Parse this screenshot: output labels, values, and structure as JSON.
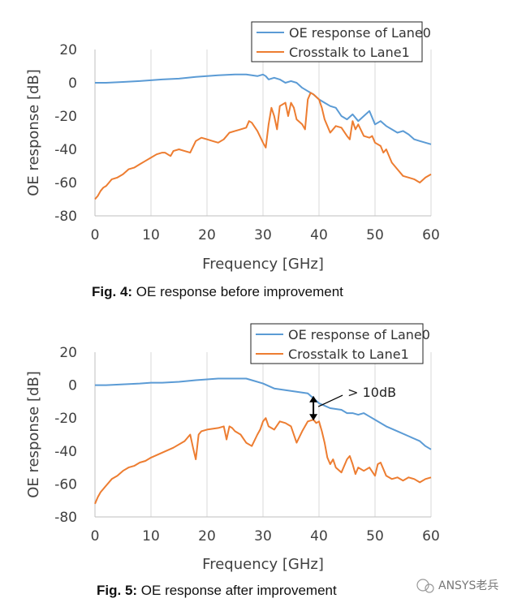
{
  "colors": {
    "oe": "#5b9bd5",
    "crosstalk": "#ed7d31",
    "grid": "#d9d9d9",
    "axis": "#bfbfbf"
  },
  "chart_data": [
    {
      "type": "line",
      "xlabel": "Frequency [GHz]",
      "ylabel": "OE response [dB]",
      "xlim": [
        0,
        60
      ],
      "ylim": [
        -80,
        20
      ],
      "xticks": [
        0,
        10,
        20,
        30,
        40,
        50,
        60
      ],
      "yticks": [
        20,
        0,
        -20,
        -40,
        -60,
        -80
      ],
      "grid": "vertical",
      "legend": "top-right",
      "caption_label": "Fig. 4:",
      "caption_text": " OE response before improvement",
      "series": [
        {
          "name": "OE response of Lane0",
          "color": "#5b9bd5",
          "x": [
            0,
            2,
            5,
            8,
            10,
            12,
            15,
            18,
            20,
            22,
            25,
            27,
            28,
            29,
            30,
            30.5,
            31,
            32,
            33,
            34,
            35,
            36,
            37,
            38,
            39,
            40,
            41,
            42,
            43,
            44,
            45,
            46,
            47,
            48,
            49,
            50,
            51,
            52,
            53,
            54,
            55,
            56,
            57,
            58,
            59,
            60
          ],
          "y": [
            0,
            0,
            0.5,
            1,
            1.5,
            2,
            2.5,
            3.5,
            4,
            4.5,
            5,
            5,
            4.5,
            4,
            5,
            4,
            2,
            3,
            2,
            0,
            1,
            0,
            -3,
            -5,
            -7,
            -10,
            -12,
            -14,
            -15,
            -20,
            -22,
            -19,
            -23,
            -20,
            -17,
            -25,
            -23,
            -26,
            -28,
            -30,
            -29,
            -31,
            -34,
            -35,
            -36,
            -37
          ]
        },
        {
          "name": "Crosstalk to Lane1",
          "color": "#ed7d31",
          "x": [
            0,
            0.5,
            1,
            1.5,
            2,
            2.5,
            3,
            4,
            5,
            6,
            7,
            8,
            9,
            10,
            11,
            12,
            12.5,
            13,
            13.5,
            14,
            15,
            16,
            17,
            18,
            19,
            20,
            21,
            22,
            23,
            24,
            25,
            26,
            27,
            27.5,
            28,
            29,
            30,
            30.5,
            31,
            31.5,
            32,
            32.5,
            33,
            34,
            34.5,
            35,
            35.5,
            36,
            37,
            37.5,
            38,
            38.5,
            39,
            40,
            40.5,
            41,
            42,
            43,
            44,
            45,
            45.5,
            46,
            46.5,
            47,
            48,
            49,
            49.5,
            50,
            51,
            51.5,
            52,
            53,
            54,
            55,
            56,
            57,
            58,
            59,
            60
          ],
          "y": [
            -70,
            -68,
            -65,
            -63,
            -62,
            -60,
            -58,
            -57,
            -55,
            -52,
            -51,
            -49,
            -47,
            -45,
            -43,
            -42,
            -42,
            -43,
            -44,
            -41,
            -40,
            -41,
            -42,
            -35,
            -33,
            -34,
            -35,
            -36,
            -34,
            -30,
            -29,
            -28,
            -27,
            -23,
            -24,
            -29,
            -36,
            -39,
            -25,
            -15,
            -20,
            -28,
            -14,
            -12,
            -20,
            -12,
            -15,
            -22,
            -25,
            -28,
            -10,
            -6,
            -7,
            -10,
            -15,
            -22,
            -30,
            -26,
            -27,
            -32,
            -34,
            -23,
            -28,
            -25,
            -32,
            -33,
            -32,
            -36,
            -38,
            -42,
            -40,
            -48,
            -52,
            -56,
            -57,
            -58,
            -60,
            -57,
            -55
          ]
        }
      ]
    },
    {
      "type": "line",
      "xlabel": "Frequency [GHz]",
      "ylabel": "OE response [dB]",
      "xlim": [
        0,
        60
      ],
      "ylim": [
        -80,
        20
      ],
      "xticks": [
        0,
        10,
        20,
        30,
        40,
        50,
        60
      ],
      "yticks": [
        20,
        0,
        -20,
        -40,
        -60,
        -80
      ],
      "grid": "vertical",
      "legend": "top-right",
      "caption_label": "Fig. 5:",
      "caption_text": " OE response after improvement",
      "annotation": {
        "text": "> 10dB",
        "x": 39,
        "y_top": -7,
        "y_bottom": -21
      },
      "series": [
        {
          "name": "OE response of Lane0",
          "color": "#5b9bd5",
          "x": [
            0,
            2,
            5,
            8,
            10,
            12,
            15,
            18,
            20,
            22,
            25,
            27,
            28,
            30,
            32,
            34,
            36,
            38,
            39,
            40,
            42,
            44,
            45,
            46,
            47,
            48,
            49,
            50,
            52,
            54,
            56,
            58,
            59,
            60
          ],
          "y": [
            0,
            0,
            0.5,
            1,
            1.5,
            1.5,
            2,
            3,
            3.5,
            4,
            4,
            4,
            3,
            1,
            -2,
            -3,
            -4,
            -5,
            -8,
            -11,
            -14,
            -15,
            -17,
            -17,
            -18,
            -17,
            -19,
            -21,
            -25,
            -28,
            -31,
            -34,
            -37,
            -39
          ]
        },
        {
          "name": "Crosstalk to Lane1",
          "color": "#ed7d31",
          "x": [
            0,
            0.5,
            1,
            1.5,
            2,
            3,
            4,
            5,
            6,
            7,
            8,
            9,
            10,
            12,
            14,
            16,
            17,
            17.5,
            18,
            18.5,
            19,
            20,
            22,
            23,
            23.5,
            24,
            24.5,
            25,
            26,
            27,
            28,
            29,
            29.5,
            30,
            30.5,
            31,
            32,
            33,
            34,
            35,
            36,
            37,
            38,
            39,
            39.5,
            40,
            40.5,
            41,
            41.5,
            42,
            42.5,
            43,
            44,
            45,
            45.5,
            46,
            46.5,
            47,
            48,
            49,
            50,
            50.5,
            51,
            52,
            53,
            54,
            55,
            56,
            57,
            58,
            59,
            60
          ],
          "y": [
            -72,
            -68,
            -65,
            -63,
            -61,
            -57,
            -55,
            -52,
            -50,
            -49,
            -47,
            -46,
            -44,
            -41,
            -38,
            -34,
            -30,
            -38,
            -45,
            -30,
            -28,
            -27,
            -26,
            -25,
            -33,
            -25,
            -26,
            -28,
            -30,
            -35,
            -37,
            -30,
            -27,
            -22,
            -20,
            -25,
            -27,
            -22,
            -23,
            -25,
            -35,
            -28,
            -22,
            -21,
            -23,
            -22,
            -28,
            -35,
            -44,
            -48,
            -45,
            -50,
            -53,
            -45,
            -43,
            -48,
            -54,
            -50,
            -52,
            -50,
            -55,
            -48,
            -47,
            -55,
            -57,
            -56,
            -58,
            -56,
            -57,
            -59,
            -57,
            -56
          ]
        }
      ]
    }
  ],
  "watermark": "ANSYS老兵"
}
